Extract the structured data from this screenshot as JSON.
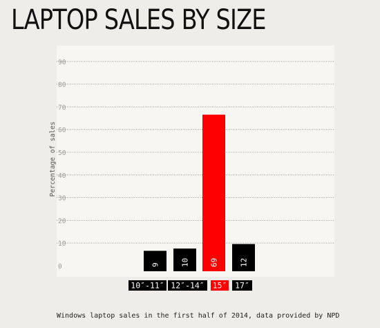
{
  "title": "LAPTOP SALES BY SIZE",
  "caption": "Windows laptop sales in the first half of 2014, data provided by NPD",
  "colors": {
    "page_background": "#efedea",
    "plot_background": "#f7f6f3",
    "bar_default": "#000000",
    "bar_highlight": "#ff0000",
    "label_text": "#ffffff",
    "grid": "#8c8c8c"
  },
  "chart_data": {
    "type": "bar",
    "title": "LAPTOP SALES BY SIZE",
    "xlabel": "",
    "ylabel": "Percentage of sales",
    "ylim": [
      0,
      95
    ],
    "yticks": [
      0,
      10,
      20,
      30,
      40,
      50,
      60,
      70,
      80,
      90
    ],
    "grid": "horizontal dotted",
    "legend": "none",
    "categories": [
      "10″-11″",
      "12″-14″",
      "15″",
      "17″"
    ],
    "values": [
      9,
      10,
      69,
      12
    ],
    "highlight": "15″"
  }
}
